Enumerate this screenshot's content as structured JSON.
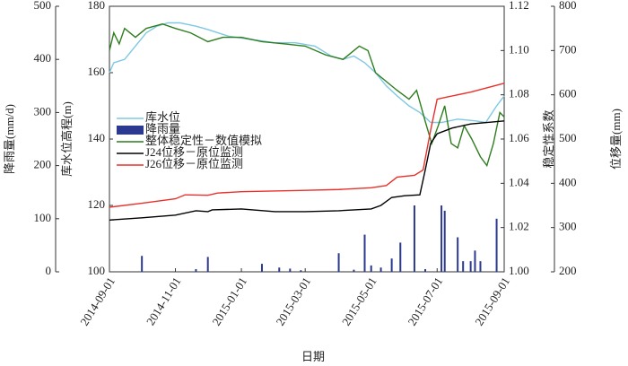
{
  "chart_data": {
    "type": "combo",
    "x_label": "日期",
    "xlim": [
      "2014-09-01",
      "2015-09-01"
    ],
    "xticks": [
      "2014-09-01",
      "2014-11-01",
      "2015-01-01",
      "2015-03-01",
      "2015-05-01",
      "2015-07-01",
      "2015-09-01"
    ],
    "y_axes": [
      {
        "label": "降雨量(mm/d)",
        "lim": [
          0,
          500
        ],
        "ticks": [
          0,
          100,
          200,
          300,
          400,
          500
        ]
      },
      {
        "label": "库水位高程(m)",
        "lim": [
          100,
          180
        ],
        "ticks": [
          100,
          120,
          140,
          160,
          180
        ]
      },
      {
        "label": "稳定性系数",
        "lim": [
          1,
          1.12
        ],
        "ticks": [
          {
            "value": 1,
            "label": "1.00"
          },
          1.02,
          1.04,
          1.06,
          1.08,
          {
            "value": 1.1,
            "label": "1.10"
          },
          1.12
        ]
      },
      {
        "label": "位移量(mm)",
        "lim": [
          200,
          800
        ],
        "ticks": [
          200,
          300,
          400,
          500,
          600,
          700,
          800
        ]
      }
    ],
    "legend": "upper left",
    "series": [
      {
        "name": "库水位",
        "type": "line",
        "axis": 1,
        "color": "#7ec8e3",
        "x": [
          "2014-09-01",
          "2014-09-05",
          "2014-09-15",
          "2014-09-25",
          "2014-10-05",
          "2014-10-15",
          "2014-10-25",
          "2014-11-05",
          "2014-11-20",
          "2014-12-01",
          "2014-12-20",
          "2015-01-10",
          "2015-02-01",
          "2015-02-20",
          "2015-03-10",
          "2015-03-25",
          "2015-04-05",
          "2015-04-15",
          "2015-04-25",
          "2015-05-05",
          "2015-05-15",
          "2015-05-25",
          "2015-06-05",
          "2015-06-15",
          "2015-06-25",
          "2015-07-05",
          "2015-07-20",
          "2015-08-05",
          "2015-08-15",
          "2015-08-25",
          "2015-09-01"
        ],
        "values": [
          160,
          163,
          164,
          168,
          172,
          174,
          175,
          175,
          174,
          173,
          171,
          170,
          169,
          169,
          168,
          165,
          164,
          165,
          163,
          160,
          156,
          153,
          150,
          148,
          145,
          145,
          146,
          145.5,
          145,
          150,
          153
        ]
      },
      {
        "name": "降雨量",
        "type": "bar",
        "axis": 0,
        "color": "#2b3990",
        "x": [
          "2014-10-01",
          "2014-11-20",
          "2014-12-01",
          "2015-01-20",
          "2015-02-05",
          "2015-02-15",
          "2015-02-25",
          "2015-04-01",
          "2015-04-15",
          "2015-04-25",
          "2015-05-01",
          "2015-05-10",
          "2015-05-20",
          "2015-05-28",
          "2015-06-10",
          "2015-06-20",
          "2015-07-05",
          "2015-07-08",
          "2015-07-20",
          "2015-07-25",
          "2015-08-01",
          "2015-08-05",
          "2015-08-10",
          "2015-08-25"
        ],
        "values": [
          30,
          5,
          28,
          15,
          8,
          6,
          3,
          35,
          4,
          70,
          12,
          8,
          25,
          55,
          125,
          5,
          125,
          115,
          65,
          20,
          20,
          40,
          20,
          100
        ]
      },
      {
        "name": "整体稳定性－数值模拟",
        "type": "line",
        "axis": 2,
        "color": "#2e7d1f",
        "x": [
          "2014-09-01",
          "2014-09-05",
          "2014-09-10",
          "2014-09-15",
          "2014-09-25",
          "2014-10-05",
          "2014-10-20",
          "2014-11-01",
          "2014-11-15",
          "2014-12-01",
          "2014-12-15",
          "2015-01-01",
          "2015-01-20",
          "2015-02-10",
          "2015-03-01",
          "2015-03-20",
          "2015-04-05",
          "2015-04-20",
          "2015-04-28",
          "2015-05-05",
          "2015-05-15",
          "2015-05-25",
          "2015-06-05",
          "2015-06-12",
          "2015-06-20",
          "2015-06-26",
          "2015-07-02",
          "2015-07-08",
          "2015-07-14",
          "2015-07-20",
          "2015-07-26",
          "2015-08-02",
          "2015-08-10",
          "2015-08-16",
          "2015-08-22",
          "2015-08-28",
          "2015-09-01"
        ],
        "values": [
          1.1,
          1.108,
          1.103,
          1.11,
          1.106,
          1.11,
          1.112,
          1.11,
          1.108,
          1.104,
          1.106,
          1.106,
          1.104,
          1.103,
          1.102,
          1.098,
          1.096,
          1.102,
          1.1,
          1.09,
          1.086,
          1.082,
          1.078,
          1.082,
          1.068,
          1.058,
          1.066,
          1.075,
          1.058,
          1.056,
          1.066,
          1.06,
          1.052,
          1.048,
          1.058,
          1.072,
          1.07
        ]
      },
      {
        "name": "J24位移－原位监测",
        "type": "line",
        "axis": 3,
        "color": "#000000",
        "x": [
          "2014-09-01",
          "2014-10-01",
          "2014-11-01",
          "2014-11-20",
          "2014-12-01",
          "2014-12-05",
          "2015-01-01",
          "2015-02-01",
          "2015-03-01",
          "2015-04-01",
          "2015-05-01",
          "2015-05-10",
          "2015-05-20",
          "2015-06-01",
          "2015-06-15",
          "2015-06-20",
          "2015-06-25",
          "2015-07-01",
          "2015-07-15",
          "2015-08-01",
          "2015-09-01"
        ],
        "values": [
          317,
          322,
          328,
          338,
          336,
          340,
          342,
          336,
          336,
          338,
          342,
          350,
          368,
          372,
          374,
          430,
          490,
          512,
          525,
          534,
          541
        ]
      },
      {
        "name": "J26位移－原位监测",
        "type": "line",
        "axis": 3,
        "color": "#e8312a",
        "x": [
          "2014-09-01",
          "2014-10-01",
          "2014-11-01",
          "2014-11-10",
          "2014-12-01",
          "2014-12-10",
          "2015-01-01",
          "2015-03-01",
          "2015-04-01",
          "2015-05-01",
          "2015-05-15",
          "2015-05-25",
          "2015-06-10",
          "2015-06-18",
          "2015-06-25",
          "2015-07-01",
          "2015-07-10",
          "2015-08-01",
          "2015-09-01"
        ],
        "values": [
          346,
          355,
          365,
          374,
          373,
          378,
          381,
          384,
          386,
          390,
          395,
          414,
          418,
          430,
          520,
          590,
          595,
          606,
          626
        ]
      }
    ]
  }
}
